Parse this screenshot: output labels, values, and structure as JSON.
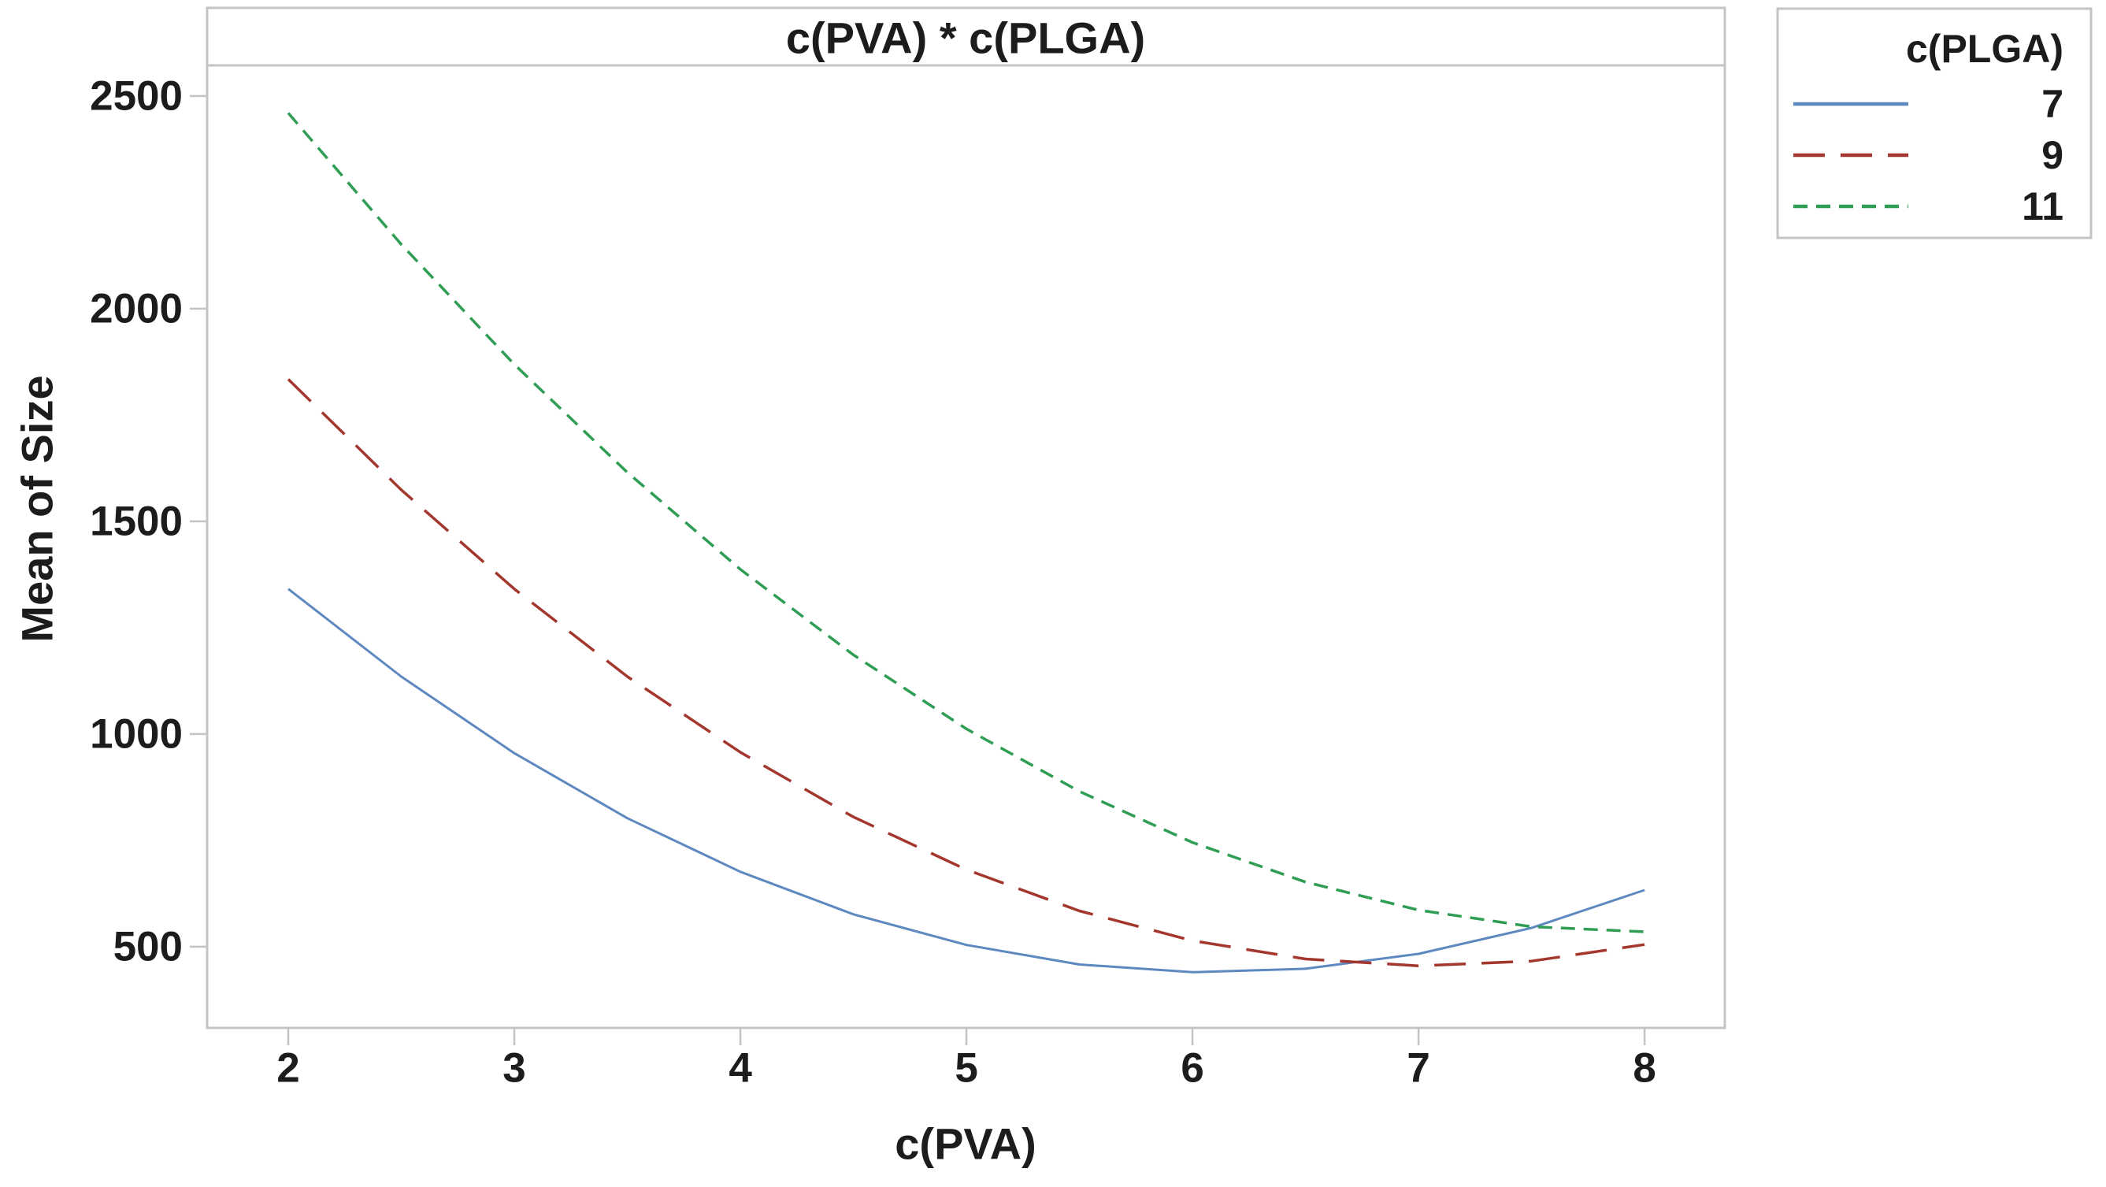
{
  "chart_data": {
    "type": "line",
    "title": "c(PVA) * c(PLGA)",
    "xlabel": "c(PVA)",
    "ylabel": "Mean of Size",
    "xlim": [
      1.641,
      8.355
    ],
    "ylim": [
      309,
      2572
    ],
    "xticks": [
      2,
      3,
      4,
      5,
      6,
      7,
      8
    ],
    "yticks": [
      2500,
      2000,
      1500,
      1000,
      500
    ],
    "grid": false,
    "frame_color": "#c4c4c4",
    "text_color": "#1c1c1c",
    "legend": {
      "title": "c(PLGA)",
      "position": "outside-top-right"
    },
    "x": [
      2,
      2.5,
      3,
      3.5,
      4,
      4.5,
      5,
      5.5,
      6,
      6.5,
      7,
      7.5,
      8
    ],
    "series": [
      {
        "name": "7",
        "color": "#5E88C0",
        "dash": "solid",
        "width": 3,
        "values": [
          1341,
          1135,
          955,
          802,
          676,
          576,
          504,
          458,
          440,
          448,
          483,
          544,
          633
        ]
      },
      {
        "name": "9",
        "color": "#A4372D",
        "dash": "40 20",
        "width": 3.5,
        "values": [
          1834,
          1574,
          1341,
          1135,
          957,
          805,
          681,
          584,
          514,
          471,
          455,
          466,
          505
        ]
      },
      {
        "name": "11",
        "color": "#2F9E54",
        "dash": "18 11",
        "width": 3.5,
        "values": [
          2460,
          2151,
          1869,
          1615,
          1387,
          1186,
          1012,
          865,
          745,
          652,
          586,
          547,
          535
        ]
      }
    ]
  }
}
